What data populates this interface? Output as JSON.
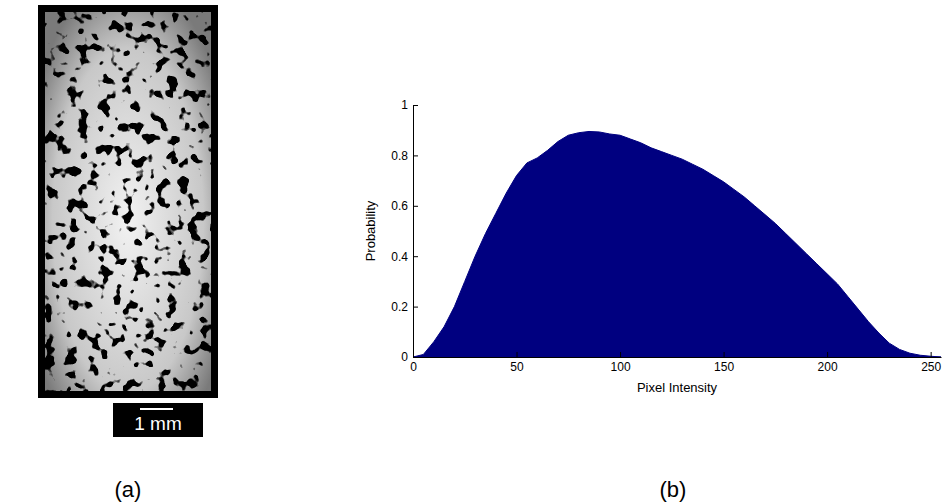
{
  "figure": {
    "panel_labels": [
      "(a)",
      "(b)"
    ],
    "scale_bar_label": "1 mm"
  },
  "chart_data": {
    "type": "area",
    "x_label": "Pixel Intensity",
    "y_label": "Probability",
    "x": [
      0,
      5,
      10,
      15,
      20,
      25,
      30,
      35,
      40,
      45,
      50,
      55,
      60,
      65,
      70,
      75,
      80,
      85,
      90,
      95,
      100,
      105,
      110,
      115,
      120,
      125,
      130,
      135,
      140,
      145,
      150,
      155,
      160,
      165,
      170,
      175,
      180,
      185,
      190,
      195,
      200,
      205,
      210,
      215,
      220,
      225,
      230,
      235,
      240,
      245,
      250,
      255
    ],
    "values": [
      0,
      0.01,
      0.06,
      0.12,
      0.2,
      0.3,
      0.4,
      0.49,
      0.57,
      0.65,
      0.72,
      0.77,
      0.79,
      0.82,
      0.855,
      0.88,
      0.89,
      0.895,
      0.893,
      0.885,
      0.88,
      0.865,
      0.85,
      0.83,
      0.815,
      0.8,
      0.785,
      0.765,
      0.745,
      0.72,
      0.695,
      0.665,
      0.635,
      0.6,
      0.565,
      0.53,
      0.49,
      0.45,
      0.41,
      0.37,
      0.33,
      0.29,
      0.24,
      0.19,
      0.14,
      0.095,
      0.055,
      0.03,
      0.015,
      0.007,
      0.003,
      0
    ],
    "color": "#000080",
    "xlim": [
      0,
      255
    ],
    "xticks": [
      0,
      50,
      100,
      150,
      200,
      250
    ],
    "ylim": [
      0,
      1
    ],
    "yticks": [
      0,
      0.2,
      0.4,
      0.6,
      0.8,
      1
    ],
    "grid": false
  }
}
